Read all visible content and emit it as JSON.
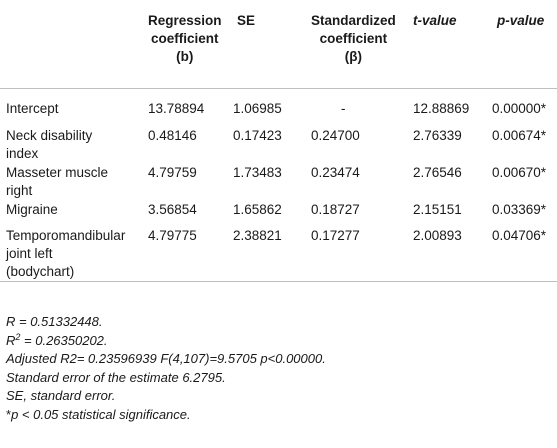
{
  "table": {
    "headers": {
      "regression": [
        "Regression",
        "coefficient",
        "(b)"
      ],
      "se": "SE",
      "standardized": [
        "Standardized",
        "coefficient",
        "(β)"
      ],
      "t_value": "t-value",
      "p_value": "p-value"
    },
    "rows": [
      {
        "label": [
          "Intercept"
        ],
        "b": "13.78894",
        "se": "1.06985",
        "beta": "-",
        "t": "12.88869",
        "p": "0.00000*"
      },
      {
        "label": [
          "Neck disability",
          "index"
        ],
        "b": "0.48146",
        "se": "0.17423",
        "beta": "0.24700",
        "t": "2.76339",
        "p": "0.00674*"
      },
      {
        "label": [
          "Masseter muscle",
          "right"
        ],
        "b": "4.79759",
        "se": "1.73483",
        "beta": "0.23474",
        "t": "2.76546",
        "p": "0.00670*"
      },
      {
        "label": [
          "Migraine"
        ],
        "b": "3.56854",
        "se": "1.65862",
        "beta": "0.18727",
        "t": "2.15151",
        "p": "0.03369*"
      },
      {
        "label": [
          "Temporomandibular",
          "joint left",
          "(bodychart)"
        ],
        "b": "4.79775",
        "se": "2.38821",
        "beta": "0.17277",
        "t": "2.00893",
        "p": "0.04706*"
      }
    ]
  },
  "notes": {
    "r": "R = 0.51332448.",
    "r2_prefix": "R",
    "r2_sup": "2",
    "r2_rest": " = 0.26350202.",
    "adjusted": "Adjusted R2= 0.23596939 F(4,107)=9.5705 p<0.00000.",
    "std_error": "Standard error of the estimate 6.2795.",
    "se_def": "SE, standard error.",
    "sig_star": "*",
    "sig_text": "p < 0.05 statistical significance."
  }
}
